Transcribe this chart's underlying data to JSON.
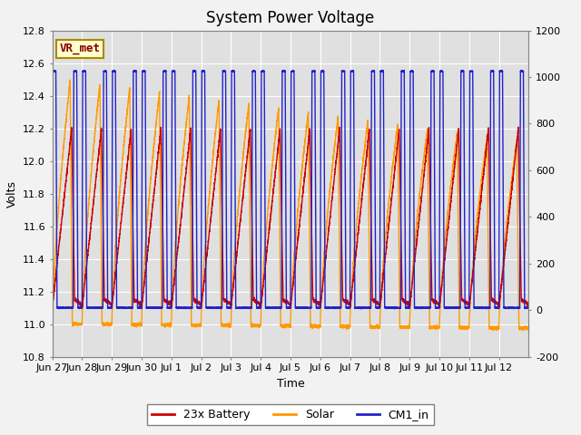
{
  "title": "System Power Voltage",
  "xlabel": "Time",
  "ylabel_left": "Volts",
  "ylim_left": [
    10.8,
    12.8
  ],
  "ylim_right": [
    -200,
    1200
  ],
  "yticks_left": [
    10.8,
    11.0,
    11.2,
    11.4,
    11.6,
    11.8,
    12.0,
    12.2,
    12.4,
    12.6,
    12.8
  ],
  "yticks_right": [
    -200,
    0,
    200,
    400,
    600,
    800,
    1000,
    1200
  ],
  "xtick_labels": [
    "Jun 27",
    "Jun 28",
    "Jun 29",
    "Jun 30",
    "Jul 1",
    "Jul 2",
    "Jul 3",
    "Jul 4",
    "Jul 5",
    "Jul 6",
    "Jul 7",
    "Jul 8",
    "Jul 9",
    "Jul 10",
    "Jul 11",
    "Jul 12"
  ],
  "n_days": 16,
  "battery_color": "#cc0000",
  "solar_color": "#ff9900",
  "cm1_color": "#2222cc",
  "legend_labels": [
    "23x Battery",
    "Solar",
    "CM1_in"
  ],
  "annotation_text": "VR_met",
  "annotation_color": "#880000",
  "annotation_bg": "#ffffcc",
  "annotation_border": "#aa8800",
  "fig_bg_color": "#f2f2f2",
  "plot_bg_color": "#e0e0e0",
  "grid_color": "#ffffff",
  "title_fontsize": 12,
  "label_fontsize": 9,
  "tick_fontsize": 8,
  "legend_fontsize": 9
}
